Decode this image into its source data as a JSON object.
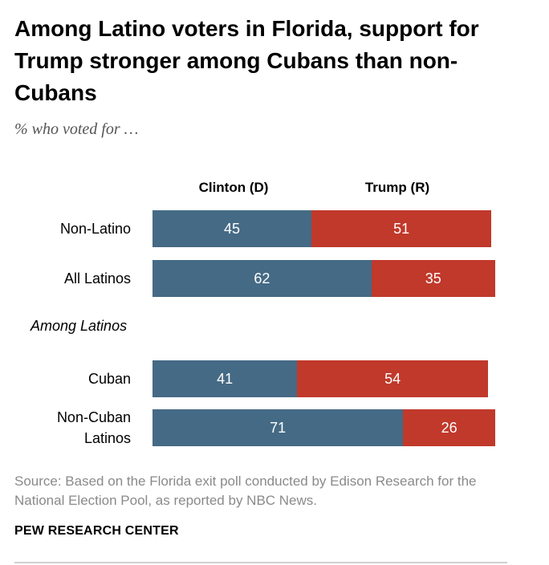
{
  "chart_data": {
    "type": "bar",
    "title": "Among Latino voters in Florida, support for Trump stronger among Cubans than non-Cubans",
    "subtitle": "% who voted for …",
    "series": [
      {
        "name": "Clinton (D)",
        "color": "#456a85"
      },
      {
        "name": "Trump (R)",
        "color": "#c0392b"
      }
    ],
    "section_label": "Among Latinos",
    "rows": [
      {
        "label": "Non-Latino",
        "clinton": 45,
        "trump": 51
      },
      {
        "label": "All Latinos",
        "clinton": 62,
        "trump": 35
      },
      {
        "label": "Cuban",
        "clinton": 41,
        "trump": 54
      },
      {
        "label": "Non-Cuban Latinos",
        "label_lines": [
          "Non-Cuban",
          "Latinos"
        ],
        "clinton": 71,
        "trump": 26
      }
    ],
    "source": "Source: Based on the Florida exit poll conducted by Edison Research for the National Election Pool, as reported by NBC News.",
    "brand": "PEW RESEARCH CENTER"
  }
}
